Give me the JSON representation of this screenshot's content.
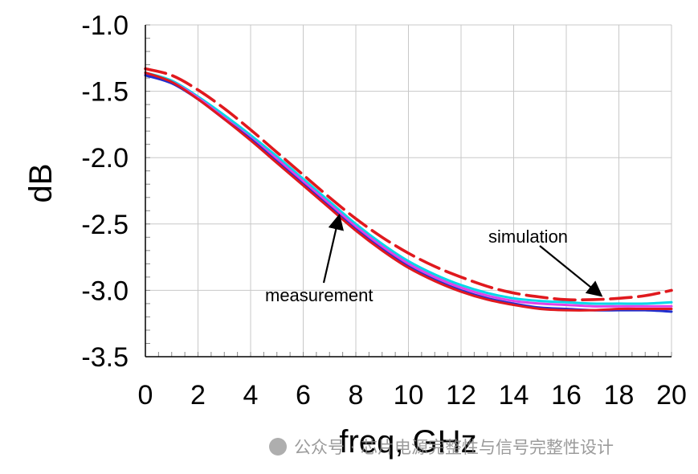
{
  "chart_data": {
    "type": "line",
    "xlabel": "freq, GHz",
    "ylabel": "dB",
    "xlim": [
      0,
      20
    ],
    "ylim": [
      -3.5,
      -1.0
    ],
    "x_ticks": [
      "0",
      "2",
      "4",
      "6",
      "8",
      "10",
      "12",
      "14",
      "16",
      "18",
      "20"
    ],
    "y_ticks": [
      "-1.0",
      "-1.5",
      "-2.0",
      "-2.5",
      "-3.0",
      "-3.5"
    ],
    "grid": true,
    "series": [
      {
        "color": "#e0191e",
        "style": "dashed",
        "x": [
          0,
          1,
          2,
          3,
          4,
          5,
          6,
          7,
          8,
          9,
          10,
          11,
          12,
          13,
          14,
          15,
          16,
          17,
          18,
          19,
          20
        ],
        "y": [
          -1.33,
          -1.38,
          -1.49,
          -1.63,
          -1.79,
          -1.96,
          -2.13,
          -2.3,
          -2.46,
          -2.6,
          -2.72,
          -2.82,
          -2.9,
          -2.97,
          -3.02,
          -3.05,
          -3.07,
          -3.07,
          -3.06,
          -3.04,
          -3.0
        ]
      },
      {
        "color": "#00d8e8",
        "style": "solid",
        "x": [
          0,
          1,
          2,
          3,
          4,
          5,
          6,
          7,
          8,
          9,
          10,
          11,
          12,
          13,
          14,
          15,
          16,
          17,
          18,
          19,
          20
        ],
        "y": [
          -1.36,
          -1.42,
          -1.54,
          -1.68,
          -1.83,
          -1.99,
          -2.16,
          -2.33,
          -2.5,
          -2.65,
          -2.78,
          -2.88,
          -2.96,
          -3.02,
          -3.06,
          -3.08,
          -3.09,
          -3.1,
          -3.1,
          -3.1,
          -3.09
        ]
      },
      {
        "color": "#e040e8",
        "style": "solid",
        "x": [
          0,
          1,
          2,
          3,
          4,
          5,
          6,
          7,
          8,
          9,
          10,
          11,
          12,
          13,
          14,
          15,
          16,
          17,
          18,
          19,
          20
        ],
        "y": [
          -1.37,
          -1.43,
          -1.55,
          -1.7,
          -1.85,
          -2.01,
          -2.18,
          -2.35,
          -2.52,
          -2.67,
          -2.8,
          -2.9,
          -2.98,
          -3.04,
          -3.08,
          -3.1,
          -3.11,
          -3.12,
          -3.12,
          -3.12,
          -3.12
        ]
      },
      {
        "color": "#1f2fd0",
        "style": "solid",
        "x": [
          0,
          1,
          2,
          3,
          4,
          5,
          6,
          7,
          8,
          9,
          10,
          11,
          12,
          13,
          14,
          15,
          16,
          17,
          18,
          19,
          20
        ],
        "y": [
          -1.38,
          -1.44,
          -1.56,
          -1.71,
          -1.86,
          -2.03,
          -2.2,
          -2.37,
          -2.54,
          -2.69,
          -2.82,
          -2.92,
          -3.0,
          -3.06,
          -3.1,
          -3.13,
          -3.14,
          -3.15,
          -3.15,
          -3.15,
          -3.16
        ]
      },
      {
        "color": "#e0191e",
        "style": "solid",
        "x": [
          0,
          1,
          2,
          3,
          4,
          5,
          6,
          7,
          8,
          9,
          10,
          11,
          12,
          13,
          14,
          15,
          16,
          17,
          18,
          19,
          20
        ],
        "y": [
          -1.36,
          -1.43,
          -1.56,
          -1.71,
          -1.87,
          -2.04,
          -2.21,
          -2.38,
          -2.55,
          -2.7,
          -2.83,
          -2.93,
          -3.01,
          -3.07,
          -3.11,
          -3.14,
          -3.15,
          -3.15,
          -3.14,
          -3.14,
          -3.14
        ]
      }
    ],
    "annotations": [
      {
        "text": "simulation",
        "points_to": [
          17.4,
          -3.06
        ]
      },
      {
        "text": "measurement",
        "points_to": [
          7.4,
          -2.41
        ]
      }
    ]
  },
  "watermark": {
    "text": "公众号 · 芯片电源完整性与信号完整性设计"
  }
}
